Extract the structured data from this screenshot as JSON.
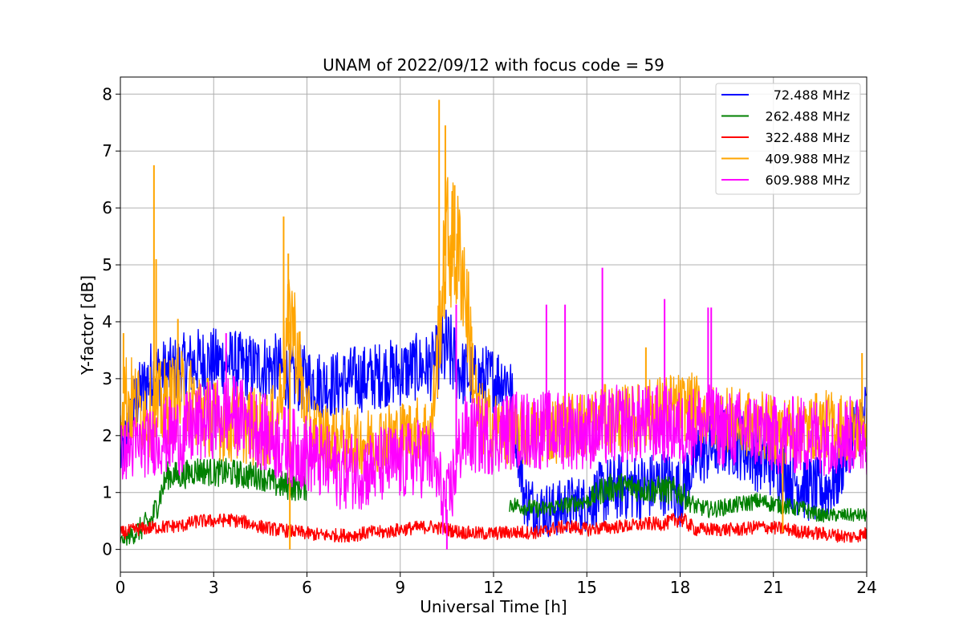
{
  "chart_data": {
    "type": "line",
    "title": "UNAM of 2022/09/12 with focus code = 59",
    "xlabel": "Universal Time [h]",
    "ylabel": "Y-factor [dB]",
    "xlim": [
      0,
      24
    ],
    "ylim": [
      -0.4,
      8.3
    ],
    "xticks": [
      0,
      3,
      6,
      9,
      12,
      15,
      18,
      21,
      24
    ],
    "yticks": [
      0,
      1,
      2,
      3,
      4,
      5,
      6,
      7,
      8
    ],
    "grid": true,
    "legend_position": "top-right",
    "x": [
      0,
      0.5,
      1,
      1.5,
      2,
      2.5,
      3,
      3.5,
      4,
      4.5,
      5,
      5.5,
      6,
      6.5,
      7,
      7.5,
      8,
      8.5,
      9,
      9.5,
      10,
      10.5,
      11,
      11.5,
      12,
      12.5,
      13,
      13.5,
      14,
      14.5,
      15,
      15.5,
      16,
      16.5,
      17,
      17.5,
      18,
      18.5,
      19,
      19.5,
      20,
      20.5,
      21,
      21.5,
      22,
      22.5,
      23,
      23.5,
      24
    ],
    "series": [
      {
        "name": "  72.488 MHz",
        "color": "#0000ff",
        "values": [
          1.6,
          2.6,
          3.1,
          3.1,
          3.2,
          3.3,
          3.3,
          3.3,
          3.2,
          3.2,
          3.2,
          3.0,
          3.0,
          2.9,
          2.9,
          3.0,
          3.0,
          3.1,
          3.1,
          3.2,
          3.2,
          3.5,
          3.1,
          3.0,
          3.0,
          3.0,
          0.9,
          0.7,
          0.7,
          0.8,
          0.8,
          1.0,
          1.1,
          1.1,
          1.1,
          1.2,
          1.0,
          1.6,
          1.8,
          1.9,
          1.8,
          1.6,
          1.5,
          1.3,
          1.1,
          1.0,
          1.2,
          2.0,
          2.4
        ],
        "amplitude": [
          0.5,
          0.6,
          0.6,
          0.6,
          0.6,
          0.6,
          0.6,
          0.6,
          0.6,
          0.6,
          0.6,
          0.6,
          0.6,
          0.6,
          0.6,
          0.6,
          0.6,
          0.6,
          0.6,
          0.6,
          0.6,
          0.8,
          0.6,
          0.6,
          0.6,
          0.6,
          0.5,
          0.5,
          0.5,
          0.5,
          0.5,
          0.6,
          0.6,
          0.6,
          0.6,
          0.6,
          0.6,
          0.6,
          0.6,
          0.6,
          0.6,
          0.6,
          0.6,
          0.6,
          0.6,
          0.6,
          0.6,
          0.6,
          0.6
        ]
      },
      {
        "name": "262.488 MHz",
        "color": "#008000",
        "values": [
          0.15,
          0.3,
          0.5,
          1.3,
          1.3,
          1.4,
          1.35,
          1.35,
          1.3,
          1.3,
          1.15,
          1.1,
          1.1,
          null,
          null,
          null,
          null,
          null,
          null,
          null,
          null,
          null,
          null,
          null,
          null,
          0.8,
          0.75,
          0.7,
          0.75,
          0.8,
          0.85,
          1.05,
          1.1,
          1.1,
          1.05,
          1.05,
          1.0,
          0.75,
          0.7,
          0.75,
          0.8,
          0.85,
          0.8,
          0.75,
          0.7,
          0.6,
          0.6,
          0.6,
          0.6
        ],
        "amplitude": [
          0.1,
          0.2,
          0.25,
          0.25,
          0.25,
          0.25,
          0.25,
          0.25,
          0.25,
          0.25,
          0.25,
          0.25,
          0.25,
          0,
          0,
          0,
          0,
          0,
          0,
          0,
          0,
          0,
          0,
          0,
          0,
          0.15,
          0.15,
          0.15,
          0.15,
          0.15,
          0.15,
          0.25,
          0.25,
          0.25,
          0.25,
          0.25,
          0.25,
          0.15,
          0.15,
          0.15,
          0.15,
          0.15,
          0.15,
          0.15,
          0.15,
          0.12,
          0.12,
          0.12,
          0.12
        ]
      },
      {
        "name": "322.488 MHz",
        "color": "#ff0000",
        "values": [
          0.28,
          0.35,
          0.38,
          0.4,
          0.42,
          0.5,
          0.5,
          0.52,
          0.48,
          0.4,
          0.35,
          0.32,
          0.28,
          0.25,
          0.25,
          0.25,
          0.3,
          0.3,
          0.35,
          0.38,
          0.4,
          0.35,
          0.3,
          0.28,
          0.28,
          0.3,
          0.3,
          0.3,
          0.38,
          0.4,
          0.35,
          0.38,
          0.4,
          0.42,
          0.45,
          0.45,
          0.55,
          0.35,
          0.35,
          0.35,
          0.35,
          0.4,
          0.38,
          0.35,
          0.3,
          0.28,
          0.25,
          0.22,
          0.28
        ],
        "amplitude": [
          0.12,
          0.12,
          0.12,
          0.12,
          0.12,
          0.12,
          0.12,
          0.12,
          0.12,
          0.12,
          0.12,
          0.12,
          0.12,
          0.12,
          0.12,
          0.12,
          0.12,
          0.12,
          0.12,
          0.12,
          0.12,
          0.12,
          0.12,
          0.12,
          0.12,
          0.12,
          0.12,
          0.12,
          0.12,
          0.12,
          0.12,
          0.12,
          0.12,
          0.12,
          0.12,
          0.12,
          0.15,
          0.12,
          0.12,
          0.12,
          0.12,
          0.12,
          0.12,
          0.12,
          0.12,
          0.12,
          0.12,
          0.12,
          0.12
        ]
      },
      {
        "name": "409.988 MHz",
        "color": "#ffa500",
        "values": [
          2.8,
          2.5,
          2.4,
          2.6,
          2.7,
          2.5,
          2.3,
          2.2,
          2.2,
          2.1,
          2.2,
          4.2,
          2.2,
          2.0,
          1.9,
          1.9,
          1.9,
          2.0,
          2.0,
          2.1,
          2.1,
          5.5,
          5.0,
          2.3,
          2.2,
          2.0,
          2.0,
          2.1,
          2.1,
          2.2,
          2.2,
          2.3,
          2.3,
          2.3,
          2.4,
          2.5,
          2.5,
          2.5,
          2.3,
          2.3,
          2.2,
          2.2,
          2.1,
          2.1,
          2.1,
          2.2,
          2.2,
          2.1,
          2.2
        ],
        "amplitude": [
          0.9,
          0.8,
          0.8,
          0.8,
          0.8,
          0.8,
          0.7,
          0.7,
          0.7,
          0.7,
          0.7,
          1.0,
          0.7,
          0.6,
          0.6,
          0.6,
          0.6,
          0.6,
          0.6,
          0.6,
          0.6,
          1.2,
          1.2,
          0.7,
          0.6,
          0.6,
          0.6,
          0.6,
          0.6,
          0.6,
          0.6,
          0.6,
          0.6,
          0.6,
          0.6,
          0.6,
          0.6,
          0.6,
          0.6,
          0.6,
          0.6,
          0.6,
          0.6,
          0.6,
          0.6,
          0.6,
          0.6,
          0.6,
          0.6
        ],
        "spikes": [
          [
            1.08,
            6.75
          ],
          [
            1.15,
            5.1
          ],
          [
            5.25,
            5.85
          ],
          [
            5.4,
            5.2
          ],
          [
            10.25,
            7.9
          ],
          [
            10.45,
            7.45
          ],
          [
            10.75,
            6.4
          ],
          [
            0.1,
            3.8
          ],
          [
            1.85,
            4.05
          ],
          [
            16.9,
            3.55
          ],
          [
            23.85,
            3.45
          ],
          [
            5.45,
            0.0
          ],
          [
            21.3,
            0.3
          ]
        ]
      },
      {
        "name": "609.988 MHz",
        "color": "#ff00ff",
        "values": [
          1.7,
          1.8,
          1.9,
          2.0,
          2.0,
          2.2,
          2.3,
          2.4,
          2.3,
          2.1,
          1.9,
          1.8,
          1.7,
          1.5,
          1.4,
          1.4,
          1.4,
          1.5,
          1.5,
          1.6,
          1.6,
          0.7,
          2.0,
          2.0,
          2.0,
          2.1,
          2.1,
          2.1,
          2.1,
          2.1,
          2.1,
          2.1,
          2.2,
          2.2,
          2.2,
          2.2,
          2.1,
          2.2,
          2.2,
          2.1,
          2.1,
          2.1,
          2.0,
          2.0,
          2.0,
          2.0,
          2.0,
          2.0,
          2.0
        ],
        "amplitude": [
          0.5,
          0.6,
          0.6,
          0.7,
          0.7,
          0.7,
          0.7,
          0.7,
          0.7,
          0.7,
          0.7,
          0.7,
          0.7,
          0.7,
          0.7,
          0.7,
          0.7,
          0.7,
          0.7,
          0.7,
          0.7,
          0.7,
          0.7,
          0.7,
          0.7,
          0.7,
          0.7,
          0.7,
          0.7,
          0.7,
          0.7,
          0.7,
          0.7,
          0.7,
          0.7,
          0.7,
          0.7,
          0.7,
          0.7,
          0.7,
          0.7,
          0.7,
          0.7,
          0.7,
          0.7,
          0.7,
          0.7,
          0.7,
          0.7
        ],
        "spikes": [
          [
            10.8,
            4.3
          ],
          [
            13.7,
            4.3
          ],
          [
            14.3,
            4.3
          ],
          [
            15.5,
            4.95
          ],
          [
            17.5,
            4.4
          ],
          [
            18.9,
            4.25
          ],
          [
            19.0,
            4.25
          ],
          [
            3.4,
            3.8
          ],
          [
            10.5,
            0.0
          ],
          [
            16.8,
            2.8
          ]
        ]
      }
    ]
  }
}
